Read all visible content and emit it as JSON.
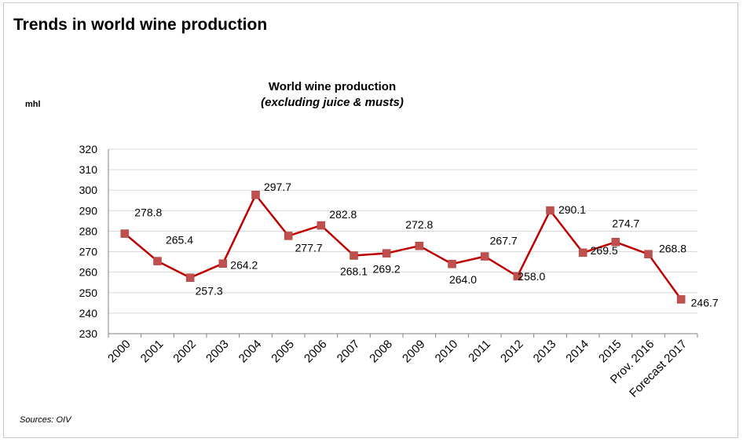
{
  "slide": {
    "title": "Trends in world wine production",
    "source": "Sources: OIV"
  },
  "colors": {
    "line": "#c00000",
    "marker": "#c0504d",
    "grid": "#d9d9d9",
    "axis": "#808080"
  },
  "chart_data": {
    "type": "line",
    "title": "World wine production",
    "subtitle": "(excluding juice & musts)",
    "ylabel": "mhl",
    "xlabel": "",
    "ylim": [
      230,
      320
    ],
    "yticks": [
      230,
      240,
      250,
      260,
      270,
      280,
      290,
      300,
      310,
      320
    ],
    "grid": true,
    "legend": "none",
    "categories": [
      "2000",
      "2001",
      "2002",
      "2003",
      "2004",
      "2005",
      "2006",
      "2007",
      "2008",
      "2009",
      "2010",
      "2011",
      "2012",
      "2013",
      "2014",
      "2015",
      "Prov. 2016",
      "Forecast 2017"
    ],
    "series": [
      {
        "values": [
          278.8,
          265.4,
          257.3,
          264.2,
          297.7,
          277.7,
          282.8,
          268.1,
          269.2,
          272.8,
          264.0,
          267.7,
          258.0,
          290.1,
          269.5,
          274.7,
          268.8,
          246.7
        ],
        "data_labels": [
          "278.8",
          "265.4",
          "257.3",
          "264.2",
          "297.7",
          "277.7",
          "282.8",
          "268.1",
          "269.2",
          "272.8",
          "264.0",
          "267.7",
          "258.0",
          "290.1",
          "269.5",
          "274.7",
          "268.8",
          "246.7"
        ]
      }
    ]
  }
}
